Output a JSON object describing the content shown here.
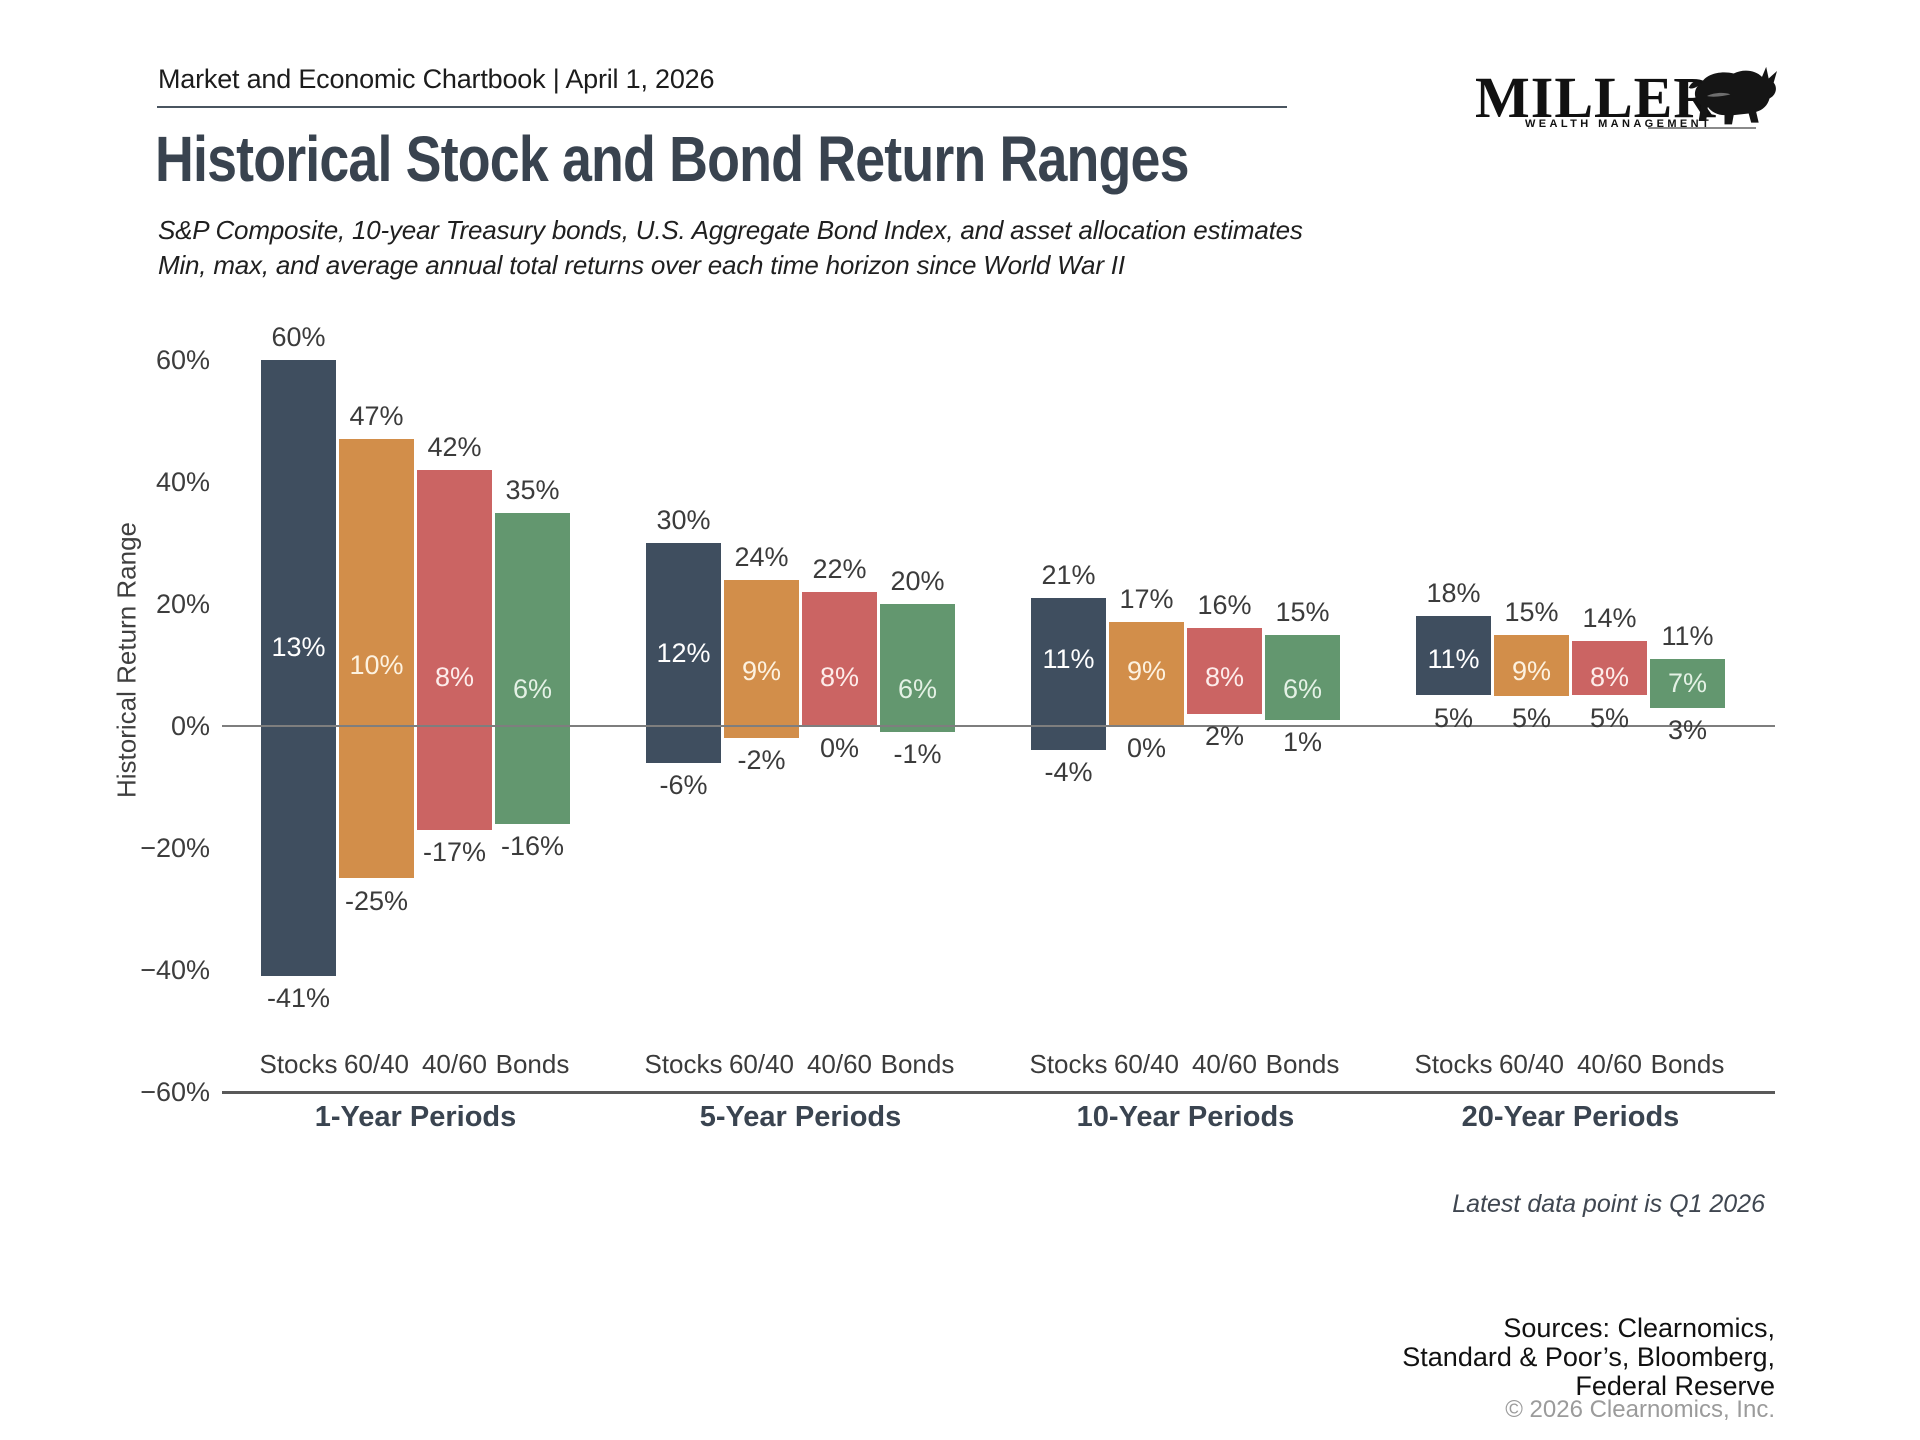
{
  "header": {
    "kicker": "Market and Economic Chartbook | April 1, 2026",
    "title": "Historical Stock and Bond Return Ranges",
    "subtitle_line1": "S&P Composite, 10-year Treasury bonds, U.S. Aggregate Bond Index, and asset allocation estimates",
    "subtitle_line2": "Min, max, and average annual total returns over each time horizon since World War II"
  },
  "logo": {
    "brand": "MILLER",
    "tagline": "WEALTH MANAGEMENT"
  },
  "footnote": "Latest data point is Q1 2026",
  "footer": {
    "sources_line1": "Sources: Clearnomics,",
    "sources_line2": "Standard & Poor’s, Bloomberg,",
    "sources_line3": "Federal Reserve",
    "copyright": "© 2026 Clearnomics, Inc."
  },
  "chart_data": {
    "type": "bar",
    "variant": "floating_range_min_avg_max",
    "title": "Historical Stock and Bond Return Ranges",
    "ylabel": "Historical Return Range",
    "ylim": [
      -60,
      60
    ],
    "grid": "zero-line and bottom baseline only",
    "legend_position": "none",
    "yticks": [
      {
        "value": 60,
        "label": "60%"
      },
      {
        "value": 40,
        "label": "40%"
      },
      {
        "value": 20,
        "label": "20%"
      },
      {
        "value": 0,
        "label": "0%"
      },
      {
        "value": -20,
        "label": "−20%"
      },
      {
        "value": -40,
        "label": "−40%"
      },
      {
        "value": -60,
        "label": "−60%"
      }
    ],
    "gridlines": [
      0,
      -60
    ],
    "categories": [
      "Stocks",
      "60/40",
      "40/60",
      "Bonds"
    ],
    "colors": {
      "Stocks": {
        "bar": "#3f4e5f",
        "label": "#ffffff"
      },
      "60/40": {
        "bar": "#d28e4a",
        "label": "#fdf2e0"
      },
      "40/60": {
        "bar": "#cb6463",
        "label": "#fdecea"
      },
      "Bonds": {
        "bar": "#63976f",
        "label": "#e4f1e5"
      }
    },
    "groups": [
      {
        "label": "1-Year Periods",
        "bars": [
          {
            "category": "Stocks",
            "min": -41,
            "avg": 13,
            "max": 60
          },
          {
            "category": "60/40",
            "min": -25,
            "avg": 10,
            "max": 47
          },
          {
            "category": "40/60",
            "min": -17,
            "avg": 8,
            "max": 42
          },
          {
            "category": "Bonds",
            "min": -16,
            "avg": 6,
            "max": 35
          }
        ]
      },
      {
        "label": "5-Year Periods",
        "bars": [
          {
            "category": "Stocks",
            "min": -6,
            "avg": 12,
            "max": 30
          },
          {
            "category": "60/40",
            "min": -2,
            "avg": 9,
            "max": 24
          },
          {
            "category": "40/60",
            "min": 0,
            "avg": 8,
            "max": 22
          },
          {
            "category": "Bonds",
            "min": -1,
            "avg": 6,
            "max": 20
          }
        ]
      },
      {
        "label": "10-Year Periods",
        "bars": [
          {
            "category": "Stocks",
            "min": -4,
            "avg": 11,
            "max": 21
          },
          {
            "category": "60/40",
            "min": 0,
            "avg": 9,
            "max": 17
          },
          {
            "category": "40/60",
            "min": 2,
            "avg": 8,
            "max": 16
          },
          {
            "category": "Bonds",
            "min": 1,
            "avg": 6,
            "max": 15
          }
        ]
      },
      {
        "label": "20-Year Periods",
        "bars": [
          {
            "category": "Stocks",
            "min": 5,
            "avg": 11,
            "max": 18
          },
          {
            "category": "60/40",
            "min": 5,
            "avg": 9,
            "max": 15
          },
          {
            "category": "40/60",
            "min": 5,
            "avg": 8,
            "max": 14
          },
          {
            "category": "Bonds",
            "min": 3,
            "avg": 7,
            "max": 11
          }
        ]
      }
    ]
  }
}
